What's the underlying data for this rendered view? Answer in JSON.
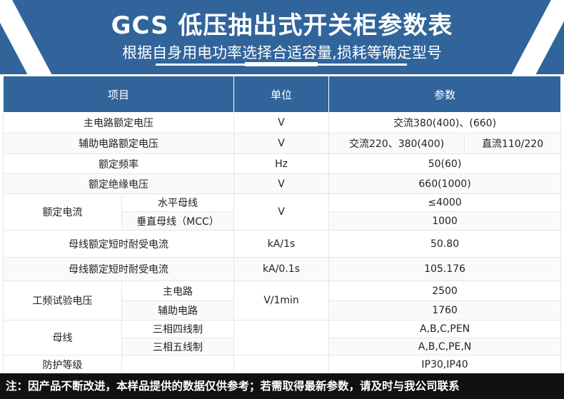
{
  "header": {
    "title": "GCS 低压抽出式开关柜参数表",
    "subtitle": "根据自身用电功率选择合适容量,损耗等确定型号"
  },
  "table": {
    "columns": [
      "项目",
      "单位",
      "参数"
    ],
    "rows": {
      "r1": {
        "item": "主电路额定电压",
        "unit": "V",
        "value": "交流380(400)、(660)"
      },
      "r2": {
        "item": "辅助电路额定电压",
        "unit": "V",
        "value_ac": "交流220、380(400)",
        "value_dc": "直流110/220"
      },
      "r3": {
        "item": "额定频率",
        "unit": "Hz",
        "value": "50(60)"
      },
      "r4": {
        "item": "额定绝缘电压",
        "unit": "V",
        "value": "660(1000)"
      },
      "r5": {
        "item": "额定电流",
        "sub1": "水平母线",
        "sub2": "垂直母线（MCC）",
        "unit": "V",
        "value1": "≤4000",
        "value2": "1000"
      },
      "r6": {
        "item": "母线额定短时耐受电流",
        "unit": "kA/1s",
        "value": "50.80"
      },
      "r7": {
        "item": "母线额定短时耐受电流",
        "unit": "kA/0.1s",
        "value": "105.176"
      },
      "r8": {
        "item": "工频试验电压",
        "sub1": "主电路",
        "sub2": "辅助电路",
        "unit": "V/1min",
        "value1": "2500",
        "value2": "1760"
      },
      "r9": {
        "item": "母线",
        "sub1": "三相四线制",
        "sub2": "三相五线制",
        "value1": "A,B,C,PEN",
        "value2": "A,B,C,PE,N"
      },
      "r10": {
        "item": "防护等级",
        "value": "IP30,IP40"
      }
    }
  },
  "footer": {
    "note": "注：因产品不断改进，本样品提供的数据仅供参考；若需取得最新参数，请及时与我公司联系"
  }
}
